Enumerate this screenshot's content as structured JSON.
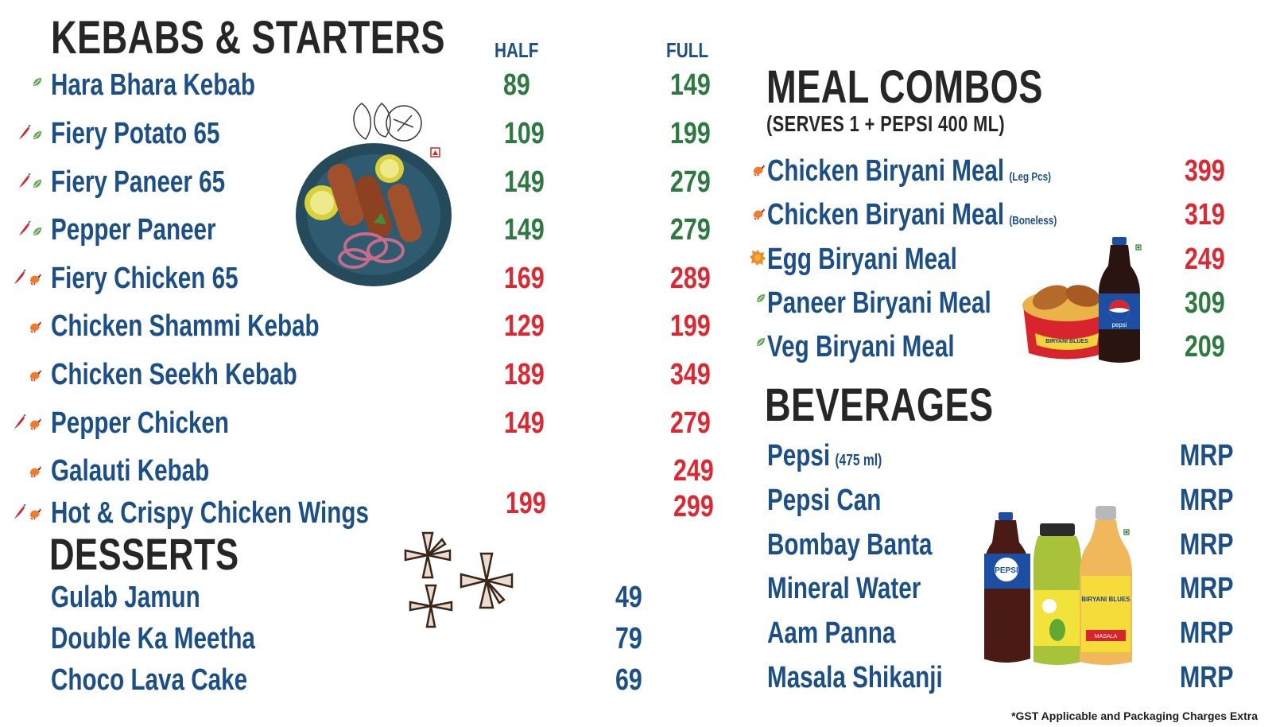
{
  "colors": {
    "title": "#262626",
    "item": "#1b4f8a",
    "veg": "#2c7a3f",
    "nonveg": "#e0262e",
    "blue_price": "#1b4f8a"
  },
  "kebabs": {
    "title": "KEBABS & STARTERS",
    "half_label": "HALF",
    "full_label": "FULL",
    "items": [
      {
        "name": "Hara Bhara Kebab",
        "half": "89",
        "full": "149",
        "type": "veg",
        "icon": "veg-leaf-icon"
      },
      {
        "name": "Fiery Potato 65",
        "half": "109",
        "full": "199",
        "type": "veg",
        "icon": "spicy-veg-icon"
      },
      {
        "name": "Fiery Paneer 65",
        "half": "149",
        "full": "279",
        "type": "veg",
        "icon": "spicy-veg-icon"
      },
      {
        "name": "Pepper Paneer",
        "half": "149",
        "full": "279",
        "type": "veg",
        "icon": "spicy-veg-icon"
      },
      {
        "name": "Fiery Chicken 65",
        "half": "169",
        "full": "289",
        "type": "nonveg",
        "icon": "spicy-chicken-icon"
      },
      {
        "name": "Chicken Shammi Kebab",
        "half": "129",
        "full": "199",
        "type": "nonveg",
        "icon": "chicken-icon"
      },
      {
        "name": "Chicken Seekh Kebab",
        "half": "189",
        "full": "349",
        "type": "nonveg",
        "icon": "chicken-icon"
      },
      {
        "name": "Pepper Chicken",
        "half": "149",
        "full": "279",
        "type": "nonveg",
        "icon": "spicy-chicken-icon"
      },
      {
        "name": "Galauti Kebab",
        "half": "",
        "full": "249",
        "type": "nonveg",
        "icon": "chicken-icon"
      },
      {
        "name": "Hot & Crispy Chicken Wings",
        "half": "199",
        "full": "299",
        "type": "nonveg",
        "icon": "spicy-chicken-icon"
      }
    ]
  },
  "desserts": {
    "title": "DESSERTS",
    "items": [
      {
        "name": "Gulab Jamun",
        "price": "49"
      },
      {
        "name": "Double Ka Meetha",
        "price": "79"
      },
      {
        "name": "Choco Lava Cake",
        "price": "69"
      }
    ]
  },
  "meal_combos": {
    "title": "MEAL COMBOS",
    "subtitle": "(SERVES 1 + PEPSI 400 ML)",
    "items": [
      {
        "name": "Chicken Biryani Meal",
        "note": "(Leg Pcs)",
        "price": "399",
        "type": "nonveg",
        "icon": "chicken-icon"
      },
      {
        "name": "Chicken Biryani Meal",
        "note": "(Boneless)",
        "price": "319",
        "type": "nonveg",
        "icon": "chicken-icon"
      },
      {
        "name": "Egg Biryani Meal",
        "note": "",
        "price": "249",
        "type": "egg",
        "icon": "egg-icon"
      },
      {
        "name": "Paneer Biryani Meal",
        "note": "",
        "price": "309",
        "type": "veg",
        "icon": "veg-leaf-icon"
      },
      {
        "name": "Veg Biryani Meal",
        "note": "",
        "price": "209",
        "type": "veg",
        "icon": "veg-leaf-icon"
      }
    ]
  },
  "beverages": {
    "title": "BEVERAGES",
    "items": [
      {
        "name": "Pepsi",
        "note": "(475 ml)",
        "price": "MRP"
      },
      {
        "name": "Pepsi Can",
        "note": "",
        "price": "MRP"
      },
      {
        "name": "Bombay Banta",
        "note": "",
        "price": "MRP"
      },
      {
        "name": "Mineral Water",
        "note": "",
        "price": "MRP"
      },
      {
        "name": "Aam Panna",
        "note": "",
        "price": "MRP"
      },
      {
        "name": "Masala Shikanji",
        "note": "",
        "price": "MRP"
      }
    ]
  },
  "images": {
    "pepsi_label": "pepsi",
    "bowl_label": "BIRYANI BLUES",
    "bottle_pepsi_label": "PEPSI",
    "bottle_blues_label": "BIRYANI BLUES",
    "bottle_blues_sub": "MASALA"
  },
  "footer_note": "*GST Applicable and Packaging Charges Extra"
}
